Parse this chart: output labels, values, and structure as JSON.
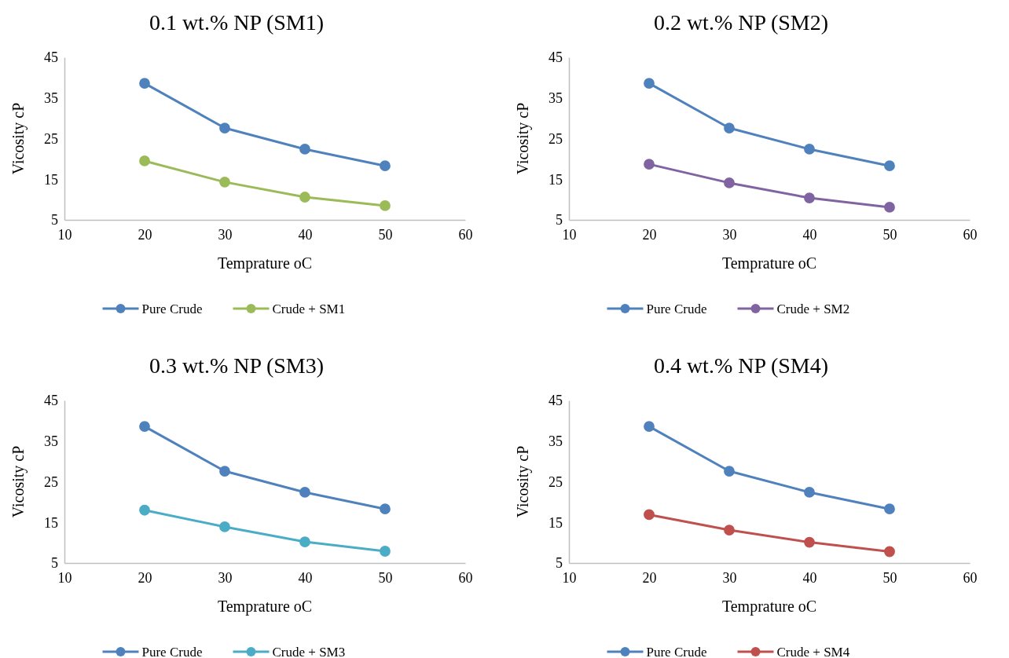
{
  "chart_data": [
    {
      "type": "line",
      "title": "0.1 wt.% NP (SM1)",
      "xlabel": "Temprature oC",
      "ylabel": "Vicosity cP",
      "x": [
        20,
        30,
        40,
        50
      ],
      "xlim": [
        10,
        60
      ],
      "xticks": [
        10,
        20,
        30,
        40,
        50,
        60
      ],
      "ylim": [
        5,
        45
      ],
      "yticks": [
        5,
        15,
        25,
        35,
        45
      ],
      "grid": false,
      "legend": "bottom",
      "marker": "circle",
      "series": [
        {
          "name": "Pure Crude",
          "color": "#4f81bd",
          "values": [
            38.6,
            27.6,
            22.4,
            18.3
          ]
        },
        {
          "name": "Crude + SM1",
          "color": "#9bbb59",
          "values": [
            19.5,
            14.3,
            10.6,
            8.5
          ]
        }
      ]
    },
    {
      "type": "line",
      "title": "0.2 wt.% NP (SM2)",
      "xlabel": "Temprature oC",
      "ylabel": "Vicosity cP",
      "x": [
        20,
        30,
        40,
        50
      ],
      "xlim": [
        10,
        60
      ],
      "xticks": [
        10,
        20,
        30,
        40,
        50,
        60
      ],
      "ylim": [
        5,
        45
      ],
      "yticks": [
        5,
        15,
        25,
        35,
        45
      ],
      "grid": false,
      "legend": "bottom",
      "marker": "circle",
      "series": [
        {
          "name": "Pure Crude",
          "color": "#4f81bd",
          "values": [
            38.6,
            27.6,
            22.4,
            18.3
          ]
        },
        {
          "name": "Crude + SM2",
          "color": "#8064a2",
          "values": [
            18.7,
            14.1,
            10.4,
            8.1
          ]
        }
      ]
    },
    {
      "type": "line",
      "title": "0.3 wt.% NP (SM3)",
      "xlabel": "Temprature oC",
      "ylabel": "Vicosity cP",
      "x": [
        20,
        30,
        40,
        50
      ],
      "xlim": [
        10,
        60
      ],
      "xticks": [
        10,
        20,
        30,
        40,
        50,
        60
      ],
      "ylim": [
        5,
        45
      ],
      "yticks": [
        5,
        15,
        25,
        35,
        45
      ],
      "grid": false,
      "legend": "bottom",
      "marker": "circle",
      "series": [
        {
          "name": "Pure Crude",
          "color": "#4f81bd",
          "values": [
            38.6,
            27.6,
            22.4,
            18.3
          ]
        },
        {
          "name": "Crude + SM3",
          "color": "#4bacc6",
          "values": [
            18.0,
            13.9,
            10.2,
            7.9
          ]
        }
      ]
    },
    {
      "type": "line",
      "title": "0.4 wt.% NP (SM4)",
      "xlabel": "Temprature oC",
      "ylabel": "Vicosity cP",
      "x": [
        20,
        30,
        40,
        50
      ],
      "xlim": [
        10,
        60
      ],
      "xticks": [
        10,
        20,
        30,
        40,
        50,
        60
      ],
      "ylim": [
        5,
        45
      ],
      "yticks": [
        5,
        15,
        25,
        35,
        45
      ],
      "grid": false,
      "legend": "bottom",
      "marker": "circle",
      "series": [
        {
          "name": "Pure Crude",
          "color": "#4f81bd",
          "values": [
            38.6,
            27.6,
            22.4,
            18.3
          ]
        },
        {
          "name": "Crude + SM4",
          "color": "#c0504d",
          "values": [
            16.9,
            13.1,
            10.1,
            7.8
          ]
        }
      ]
    }
  ]
}
